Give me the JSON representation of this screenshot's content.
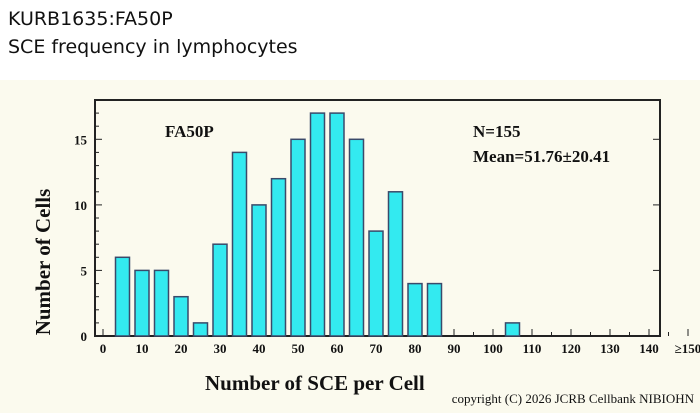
{
  "header": {
    "title_line_1": "KURB1635:FA50P",
    "title_line_2": "SCE frequency in lymphocytes"
  },
  "colors": {
    "bar_fill": "#33eaf0",
    "bar_stroke": "#3a4a6a",
    "panel_background": "#fbfaee"
  },
  "chart_data": {
    "type": "bar",
    "x": [
      5,
      10,
      15,
      20,
      25,
      30,
      35,
      40,
      45,
      50,
      55,
      60,
      65,
      70,
      75,
      80,
      85,
      90,
      95,
      100,
      105,
      110,
      115,
      120,
      125,
      130,
      135,
      140,
      145,
      150
    ],
    "values": [
      6,
      5,
      5,
      3,
      1,
      7,
      14,
      10,
      12,
      15,
      17,
      17,
      15,
      8,
      11,
      4,
      4,
      0,
      0,
      0,
      1,
      0,
      0,
      0,
      0,
      0,
      0,
      0,
      0,
      0
    ],
    "x_tick_labels": [
      "0",
      "10",
      "20",
      "30",
      "40",
      "50",
      "60",
      "70",
      "80",
      "90",
      "100",
      "110",
      "120",
      "130",
      "140",
      "≥150"
    ],
    "y_ticks": [
      "0",
      "5",
      "10",
      "15"
    ],
    "xlabel": "Number of SCE per Cell",
    "ylabel": "Number of Cells",
    "ylim": [
      0,
      18
    ],
    "xlim": [
      0,
      150
    ],
    "annotations": {
      "sample": "FA50P",
      "n": "N=155",
      "mean": "Mean=51.76±20.41"
    },
    "grid": false,
    "legend": "none"
  },
  "footer": {
    "copyright": "copyright (C) 2026 JCRB Cellbank NIBIOHN"
  }
}
